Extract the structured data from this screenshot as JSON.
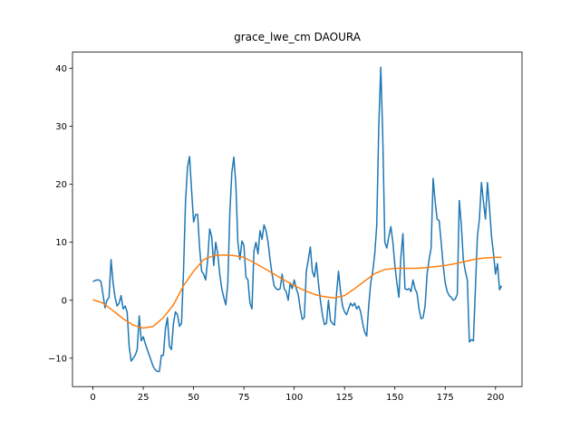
{
  "chart_data": {
    "type": "line",
    "title": "grace_lwe_cm DAOURA",
    "xlim": [
      -10.15,
      213.15
    ],
    "xticks": [
      0,
      25,
      50,
      75,
      100,
      125,
      150,
      175,
      200
    ],
    "ylim": [
      -14.9,
      42.8
    ],
    "yticks": [
      {
        "value": -10,
        "label": "−10"
      },
      0,
      10,
      20,
      30,
      40
    ],
    "grid": false,
    "series": [
      {
        "color": "#1f77b4",
        "x": [
          0,
          1,
          2,
          3,
          4,
          5,
          6,
          7,
          8,
          9,
          10,
          11,
          12,
          13,
          14,
          15,
          16,
          17,
          18,
          19,
          20,
          21,
          22,
          23,
          24,
          25,
          26,
          27,
          28,
          29,
          30,
          31,
          32,
          33,
          34,
          35,
          36,
          37,
          38,
          39,
          40,
          41,
          42,
          43,
          44,
          45,
          46,
          47,
          48,
          49,
          50,
          51,
          52,
          53,
          54,
          55,
          56,
          57,
          58,
          59,
          60,
          61,
          62,
          63,
          64,
          65,
          66,
          67,
          68,
          69,
          70,
          71,
          72,
          73,
          74,
          75,
          76,
          77,
          78,
          79,
          80,
          81,
          82,
          83,
          84,
          85,
          86,
          87,
          88,
          89,
          90,
          91,
          92,
          93,
          94,
          95,
          96,
          97,
          98,
          99,
          100,
          101,
          102,
          103,
          104,
          105,
          106,
          107,
          108,
          109,
          110,
          111,
          112,
          113,
          114,
          115,
          116,
          117,
          118,
          119,
          120,
          121,
          122,
          123,
          124,
          125,
          126,
          127,
          128,
          129,
          130,
          131,
          132,
          133,
          134,
          135,
          136,
          137,
          138,
          139,
          140,
          141,
          142,
          143,
          144,
          145,
          146,
          147,
          148,
          149,
          150,
          151,
          152,
          153,
          154,
          155,
          156,
          157,
          158,
          159,
          160,
          161,
          162,
          163,
          164,
          165,
          166,
          167,
          168,
          169,
          170,
          171,
          172,
          173,
          174,
          175,
          176,
          177,
          178,
          179,
          180,
          181,
          182,
          183,
          184,
          185,
          186,
          187,
          188,
          189,
          190,
          191,
          192,
          193,
          194,
          195,
          196,
          197,
          198,
          199,
          200,
          201,
          202,
          203
        ],
        "values": [
          3.2,
          3.4,
          3.5,
          3.5,
          3.2,
          1,
          -1.3,
          0,
          0.5,
          7,
          3,
          0.5,
          -1,
          -0.5,
          0.8,
          -1.5,
          -1,
          -2,
          -8,
          -10.5,
          -10,
          -9.5,
          -8.5,
          -2.7,
          -7,
          -6.3,
          -7.5,
          -8.5,
          -9.5,
          -10.5,
          -11.5,
          -12,
          -12.3,
          -12.3,
          -9.5,
          -9.5,
          -5,
          -3,
          -8,
          -8.5,
          -4,
          -2,
          -2.5,
          -4.5,
          -4,
          5,
          17,
          23,
          24.8,
          19,
          13.5,
          14.8,
          14.8,
          9,
          5,
          4.5,
          3.5,
          7,
          12.3,
          11,
          6,
          10,
          8,
          4.5,
          2,
          0.5,
          -0.8,
          3,
          15,
          22,
          24.7,
          20,
          10,
          7,
          10.2,
          9.5,
          4,
          3.5,
          -0.5,
          -1.5,
          8.5,
          10,
          8,
          12,
          10.5,
          13,
          12,
          10,
          7,
          4.5,
          2.5,
          2,
          1.8,
          2,
          4.5,
          2,
          1.5,
          0,
          3,
          2,
          3.5,
          2,
          1,
          -1.5,
          -3.3,
          -3,
          5,
          7,
          9.2,
          5,
          4,
          6.5,
          3,
          0,
          -2.5,
          -4.2,
          -4,
          0,
          -3.5,
          -4,
          -4.3,
          1,
          5,
          1.5,
          -1,
          -2,
          -2.5,
          -1.5,
          -0.5,
          -1,
          -0.5,
          -1.5,
          -1,
          -2,
          -4,
          -5.5,
          -6.2,
          -1,
          3,
          5,
          8,
          13,
          30,
          40.2,
          28,
          10,
          9,
          11,
          12.7,
          10,
          6,
          3,
          0.5,
          7.5,
          11.5,
          2,
          1.8,
          2,
          1.5,
          3.5,
          2,
          1.2,
          -1.5,
          -3.2,
          -3,
          -1,
          4.5,
          7,
          9,
          21,
          17,
          14,
          13.7,
          10,
          6,
          3,
          1.5,
          0.8,
          0.5,
          0,
          0.2,
          1,
          17.2,
          13,
          7,
          5,
          3.5,
          -7.2,
          -6.8,
          -7,
          2,
          11,
          14,
          20.3,
          17,
          14,
          20.3,
          16,
          11,
          8,
          4.5,
          6.3,
          1.8,
          2.5
        ]
      },
      {
        "color": "#ff7f0e",
        "x": [
          0,
          5,
          10,
          15,
          20,
          25,
          30,
          35,
          40,
          45,
          50,
          55,
          60,
          65,
          70,
          75,
          80,
          85,
          90,
          95,
          100,
          105,
          110,
          115,
          120,
          125,
          130,
          135,
          140,
          145,
          150,
          155,
          160,
          165,
          170,
          175,
          180,
          185,
          190,
          195,
          200,
          203
        ],
        "values": [
          0.1,
          -0.5,
          -1.8,
          -3.2,
          -4.3,
          -4.8,
          -4.5,
          -3,
          -0.8,
          2.5,
          5,
          7,
          7.7,
          7.8,
          7.7,
          7.4,
          6.5,
          5.5,
          4.5,
          3.5,
          2.5,
          1.7,
          1,
          0.6,
          0.4,
          0.8,
          2,
          3.3,
          4.6,
          5.3,
          5.5,
          5.5,
          5.5,
          5.6,
          5.8,
          6,
          6.3,
          6.7,
          7.1,
          7.3,
          7.4,
          7.4
        ]
      }
    ]
  }
}
